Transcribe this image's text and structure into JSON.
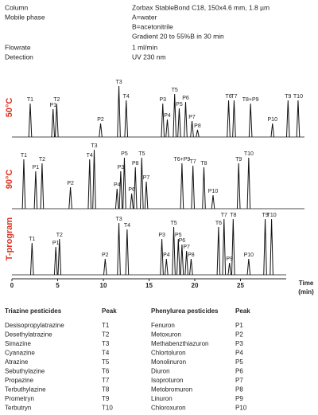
{
  "conditions": [
    {
      "label": "Column",
      "lines": [
        "Zorbax StableBond C18, 150x4.6 mm, 1.8 µm"
      ]
    },
    {
      "label": "Mobile phase",
      "lines": [
        "A=water",
        "B=acetonitrile",
        "Gradient 20 to 55%B in 30 min"
      ]
    },
    {
      "label": "Flowrate",
      "lines": [
        "1 ml/min"
      ]
    },
    {
      "label": "Detection",
      "lines": [
        "UV 230 nm"
      ]
    }
  ],
  "chart_data": [
    {
      "type": "chromatogram",
      "title": "50°C",
      "color": "#111111",
      "xlim": [
        0,
        32
      ],
      "ylim": [
        0,
        80
      ],
      "peaks": [
        {
          "label": "T1",
          "time": 2.0,
          "height": 42
        },
        {
          "label": "P1",
          "time": 4.5,
          "height": 35
        },
        {
          "label": "T2",
          "time": 4.9,
          "height": 42
        },
        {
          "label": "P2",
          "time": 9.7,
          "height": 17
        },
        {
          "label": "T3",
          "time": 11.7,
          "height": 64
        },
        {
          "label": "T4",
          "time": 12.5,
          "height": 46
        },
        {
          "label": "P3",
          "time": 16.5,
          "height": 42
        },
        {
          "label": "P4",
          "time": 17.0,
          "height": 22
        },
        {
          "label": "T5",
          "time": 17.8,
          "height": 54
        },
        {
          "label": "P5",
          "time": 18.3,
          "height": 36
        },
        {
          "label": "P6",
          "time": 19.0,
          "height": 44
        },
        {
          "label": "P7",
          "time": 19.7,
          "height": 20
        },
        {
          "label": "P8",
          "time": 20.3,
          "height": 9
        },
        {
          "label": "T6",
          "time": 23.7,
          "height": 46
        },
        {
          "label": "T7",
          "time": 24.3,
          "height": 46
        },
        {
          "label": "T8+P9",
          "time": 26.1,
          "height": 42
        },
        {
          "label": "P10",
          "time": 28.5,
          "height": 17
        },
        {
          "label": "T9",
          "time": 30.2,
          "height": 46
        },
        {
          "label": "T10",
          "time": 31.3,
          "height": 46
        }
      ]
    },
    {
      "type": "chromatogram",
      "title": "90°C",
      "color": "#111111",
      "xlim": [
        0,
        32
      ],
      "ylim": [
        0,
        80
      ],
      "peaks": [
        {
          "label": "T1",
          "time": 1.3,
          "height": 62
        },
        {
          "label": "P1",
          "time": 2.6,
          "height": 47
        },
        {
          "label": "T2",
          "time": 3.3,
          "height": 57
        },
        {
          "label": "P2",
          "time": 6.4,
          "height": 27
        },
        {
          "label": "T4",
          "time": 8.5,
          "height": 62
        },
        {
          "label": "T3",
          "time": 9.0,
          "height": 74
        },
        {
          "label": "P4",
          "time": 11.5,
          "height": 25
        },
        {
          "label": "P3",
          "time": 11.9,
          "height": 47
        },
        {
          "label": "P5",
          "time": 12.3,
          "height": 64
        },
        {
          "label": "P6",
          "time": 13.1,
          "height": 19
        },
        {
          "label": "P8",
          "time": 13.5,
          "height": 52
        },
        {
          "label": "T5",
          "time": 14.2,
          "height": 64
        },
        {
          "label": "P7",
          "time": 14.7,
          "height": 34
        },
        {
          "label": "T6+P9",
          "time": 18.6,
          "height": 57
        },
        {
          "label": "T7",
          "time": 19.8,
          "height": 54
        },
        {
          "label": "T8",
          "time": 21.0,
          "height": 52
        },
        {
          "label": "P10",
          "time": 22.0,
          "height": 17
        },
        {
          "label": "T9",
          "time": 24.8,
          "height": 57
        },
        {
          "label": "T10",
          "time": 25.9,
          "height": 64
        }
      ]
    },
    {
      "type": "chromatogram",
      "title": "T-program",
      "color": "#111111",
      "xlim": [
        0,
        30
      ],
      "ylim": [
        0,
        80
      ],
      "xticks": [
        0,
        5,
        10,
        15,
        20,
        25
      ],
      "x_label": "Time",
      "x_unit": "(min)",
      "peaks": [
        {
          "label": "T1",
          "time": 2.2,
          "height": 40
        },
        {
          "label": "P1",
          "time": 4.8,
          "height": 35
        },
        {
          "label": "T2",
          "time": 5.2,
          "height": 45
        },
        {
          "label": "P2",
          "time": 10.2,
          "height": 20
        },
        {
          "label": "T3",
          "time": 11.7,
          "height": 65
        },
        {
          "label": "T4",
          "time": 12.6,
          "height": 57
        },
        {
          "label": "P3",
          "time": 16.4,
          "height": 45
        },
        {
          "label": "P4",
          "time": 16.9,
          "height": 20
        },
        {
          "label": "T5",
          "time": 17.7,
          "height": 60
        },
        {
          "label": "P5",
          "time": 18.2,
          "height": 45
        },
        {
          "label": "P6",
          "time": 18.6,
          "height": 38
        },
        {
          "label": "P7",
          "time": 19.1,
          "height": 30
        },
        {
          "label": "P8",
          "time": 19.6,
          "height": 20
        },
        {
          "label": "T6",
          "time": 22.6,
          "height": 60
        },
        {
          "label": "T7",
          "time": 23.2,
          "height": 70
        },
        {
          "label": "P9",
          "time": 23.8,
          "height": 15
        },
        {
          "label": "T8",
          "time": 24.2,
          "height": 70
        },
        {
          "label": "P10",
          "time": 25.9,
          "height": 20
        },
        {
          "label": "T9",
          "time": 27.7,
          "height": 70
        },
        {
          "label": "T10",
          "time": 28.4,
          "height": 70
        }
      ]
    }
  ],
  "tables": [
    {
      "header": [
        "Triazine pesticides",
        "Peak"
      ],
      "rows": [
        [
          "Desisopropylatrazine",
          "T1"
        ],
        [
          "Desethylatrazine",
          "T2"
        ],
        [
          "Simazine",
          "T3"
        ],
        [
          "Cyanazine",
          "T4"
        ],
        [
          "Atrazine",
          "T5"
        ],
        [
          "Sebuthylazine",
          "T6"
        ],
        [
          "Propazine",
          "T7"
        ],
        [
          "Terbuthylazine",
          "T8"
        ],
        [
          "Prometryn",
          "T9"
        ],
        [
          "Terbutryn",
          "T10"
        ]
      ]
    },
    {
      "header": [
        "Phenylurea pesticides",
        "Peak"
      ],
      "rows": [
        [
          "Fenuron",
          "P1"
        ],
        [
          "Metoxuron",
          "P2"
        ],
        [
          "Methabenzthiazuron",
          "P3"
        ],
        [
          "Chlortoluron",
          "P4"
        ],
        [
          "Monolinuron",
          "P5"
        ],
        [
          "Diuron",
          "P6"
        ],
        [
          "Isoproturon",
          "P7"
        ],
        [
          "Metobromuron",
          "P8"
        ],
        [
          "Linuron",
          "P9"
        ],
        [
          "Chloroxuron",
          "P10"
        ]
      ]
    }
  ]
}
